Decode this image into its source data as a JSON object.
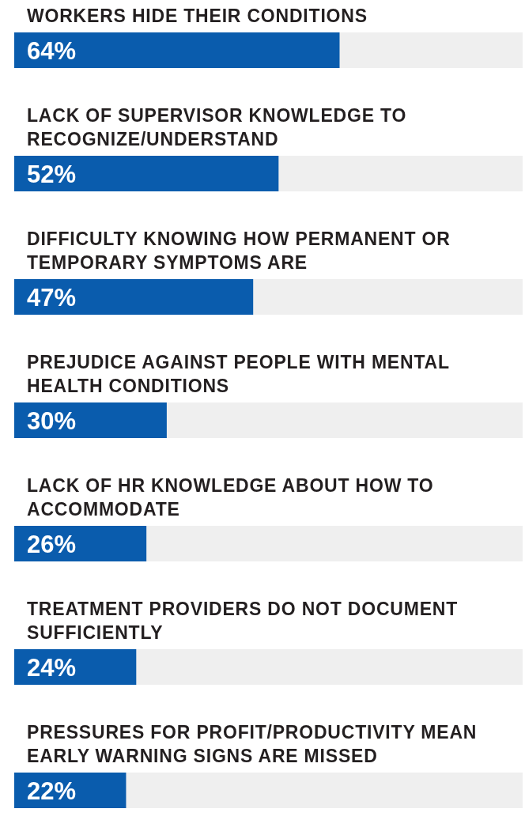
{
  "chart_data": {
    "type": "bar",
    "orientation": "horizontal",
    "categories": [
      "WORKERS HIDE THEIR CONDITIONS",
      "LACK OF SUPERVISOR KNOWLEDGE TO RECOGNIZE/UNDERSTAND",
      "DIFFICULTY KNOWING HOW PERMANENT OR TEMPORARY SYMPTOMS ARE",
      "PREJUDICE AGAINST PEOPLE WITH MENTAL HEALTH CONDITIONS",
      "LACK OF HR KNOWLEDGE ABOUT HOW TO ACCOMMODATE",
      "TREATMENT PROVIDERS DO NOT DOCUMENT SUFFICIENTLY",
      "PRESSURES FOR PROFIT/PRODUCTIVITY MEAN EARLY WARNING SIGNS ARE MISSED"
    ],
    "values": [
      64,
      52,
      47,
      30,
      26,
      24,
      22
    ],
    "value_labels": [
      "64%",
      "52%",
      "47%",
      "30%",
      "26%",
      "24%",
      "22%"
    ],
    "color": "#0a5cad",
    "xlim": [
      0,
      100
    ]
  }
}
